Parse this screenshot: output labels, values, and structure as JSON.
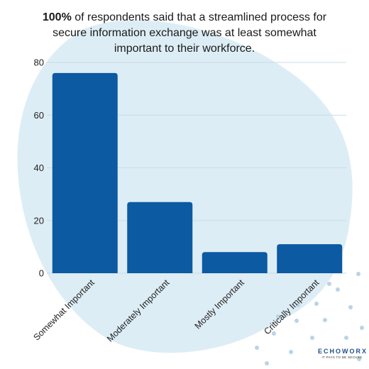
{
  "title": {
    "bold": "100%",
    "rest": " of respondents said that a streamlined process for secure information exchange was at least somewhat important to their workforce."
  },
  "colors": {
    "bar": "#0b5aa2",
    "background_blob": "#ddedf5",
    "grid": "#c9dbe6",
    "dots": "#b9d4e6"
  },
  "logo": {
    "wordmark": "ECHOWORX",
    "tagline": "IT PAYS TO BE SECURE"
  },
  "chart_data": {
    "type": "bar",
    "categories": [
      "Somewhat Important",
      "Moderately Important",
      "Mostly Important",
      "Critically Important"
    ],
    "values": [
      76,
      27,
      8,
      11
    ],
    "yticks": [
      0,
      20,
      40,
      60,
      80
    ],
    "ylim": [
      0,
      80
    ],
    "grid": true,
    "xlabel": "",
    "ylabel": ""
  }
}
